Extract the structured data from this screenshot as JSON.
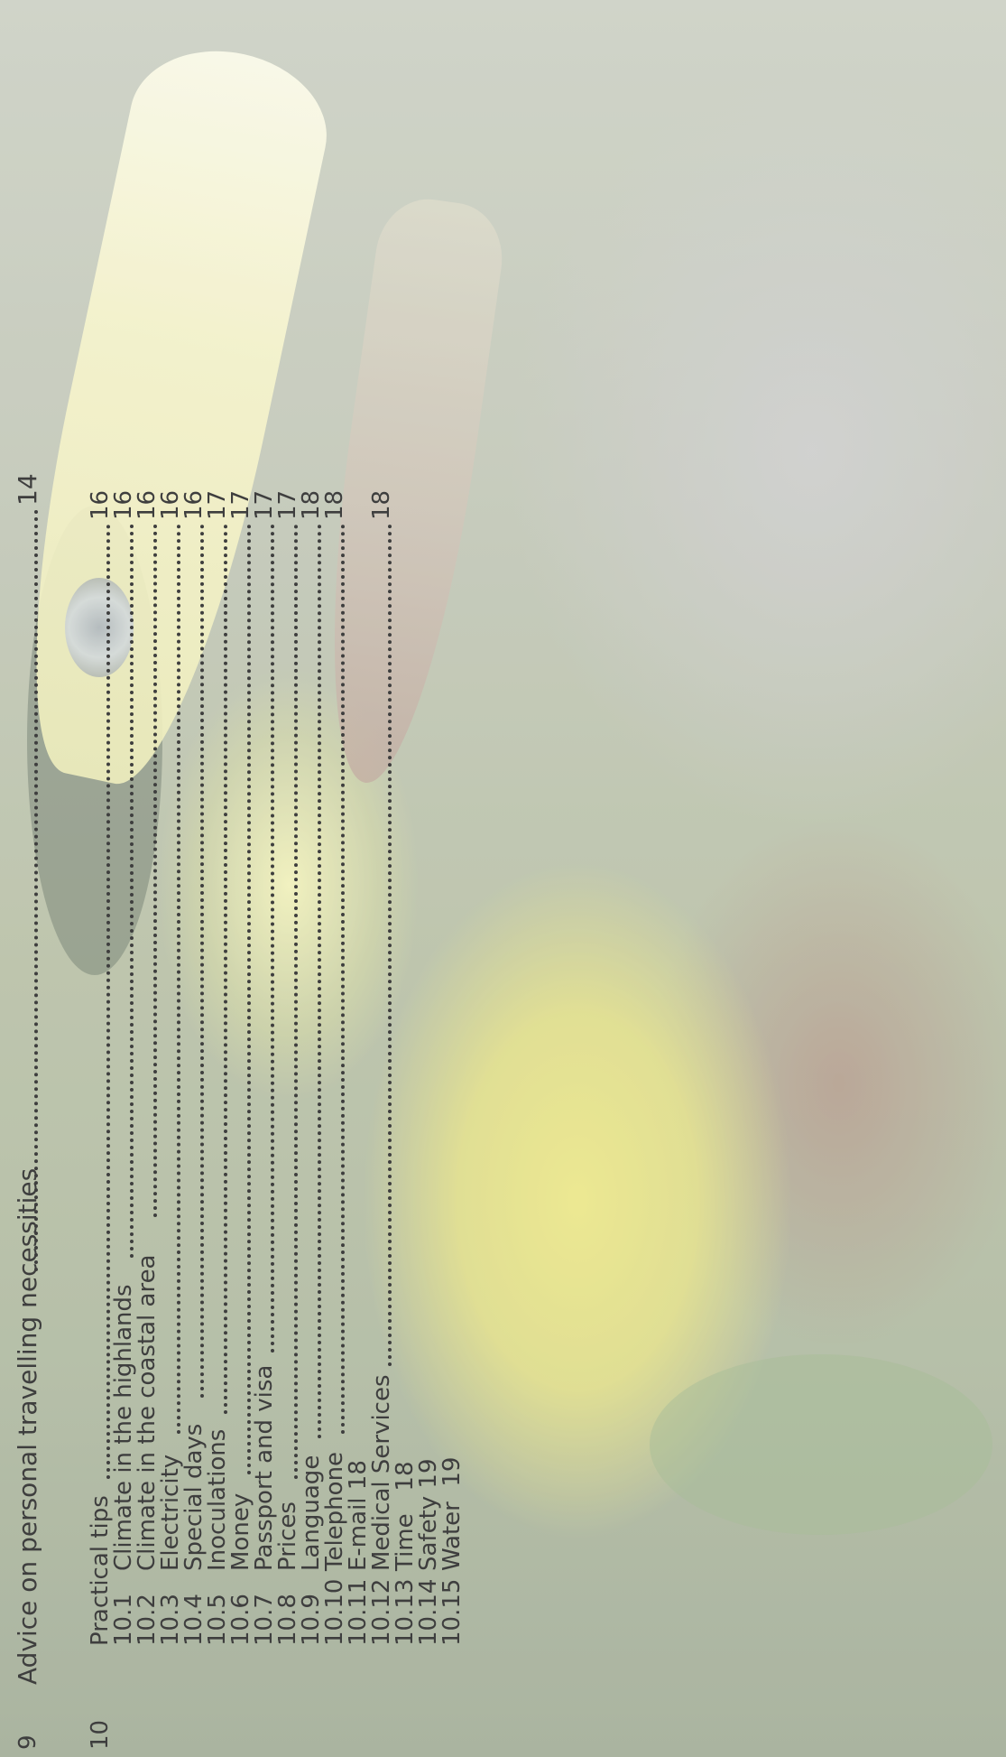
{
  "background": {
    "description_icon": "toucan-photo"
  },
  "toc": {
    "section9": {
      "number": "9",
      "title": "Advice on personal travelling  necessities",
      "page": "14"
    },
    "section10": {
      "number": "10",
      "title": "Practical tips",
      "page": "16"
    },
    "subsections": [
      {
        "number": "10.1",
        "title": "Climate in the highlands",
        "page": "16"
      },
      {
        "number": "10.2",
        "title": "Climate in the coastal area",
        "page": "16"
      },
      {
        "number": "10.3",
        "title": "Electricity",
        "page": "16"
      },
      {
        "number": "10.4",
        "title": "Special days",
        "page": "16"
      },
      {
        "number": "10.5",
        "title": "Inoculations",
        "page": "17"
      },
      {
        "number": "10.6",
        "title": "Money",
        "page": "17"
      },
      {
        "number": "10.7",
        "title": "Passport and visa",
        "page": "17"
      },
      {
        "number": "10.8",
        "title": "Prices",
        "page": "17"
      },
      {
        "number": "10.9",
        "title": "Language",
        "page": "18"
      },
      {
        "number": "10.10",
        "title": "Telephone",
        "page": "18"
      },
      {
        "number": "10.11",
        "title": "E-mail 18",
        "page": ""
      },
      {
        "number": "10.12",
        "title": "Medical Services",
        "page": "18"
      },
      {
        "number": "10.13",
        "title": "Time   18",
        "page": ""
      },
      {
        "number": "10.14",
        "title": "Safety 19",
        "page": ""
      },
      {
        "number": "10.15",
        "title": "Water  19",
        "page": ""
      }
    ]
  }
}
